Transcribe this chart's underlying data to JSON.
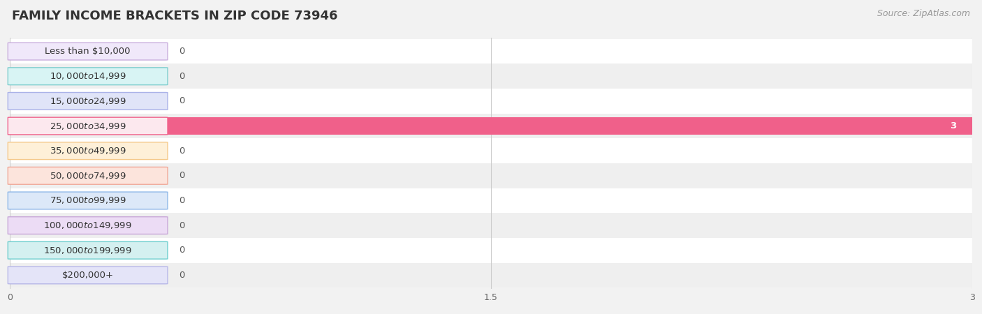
{
  "title": "FAMILY INCOME BRACKETS IN ZIP CODE 73946",
  "source": "Source: ZipAtlas.com",
  "categories": [
    "Less than $10,000",
    "$10,000 to $14,999",
    "$15,000 to $24,999",
    "$25,000 to $34,999",
    "$35,000 to $49,999",
    "$50,000 to $74,999",
    "$75,000 to $99,999",
    "$100,000 to $149,999",
    "$150,000 to $199,999",
    "$200,000+"
  ],
  "values": [
    0,
    0,
    0,
    3,
    0,
    0,
    0,
    0,
    0,
    0
  ],
  "bar_colors": [
    "#c9aedd",
    "#7ecece",
    "#aab2e8",
    "#f0608a",
    "#f5c98a",
    "#f0a898",
    "#90b8e8",
    "#c8a8d8",
    "#6ecece",
    "#b8b8e8"
  ],
  "label_bg_colors": [
    "#f0e8fa",
    "#d8f4f4",
    "#e0e4f8",
    "#fce8ee",
    "#fef0d8",
    "#fce4dc",
    "#dce8f8",
    "#ecdcf5",
    "#d4f0f0",
    "#e4e4f8"
  ],
  "xlim": [
    0,
    3
  ],
  "xticks": [
    0,
    1.5,
    3
  ],
  "background_color": "#f2f2f2",
  "title_fontsize": 13,
  "source_fontsize": 9,
  "label_fontsize": 9.5,
  "value_fontsize": 9.5
}
